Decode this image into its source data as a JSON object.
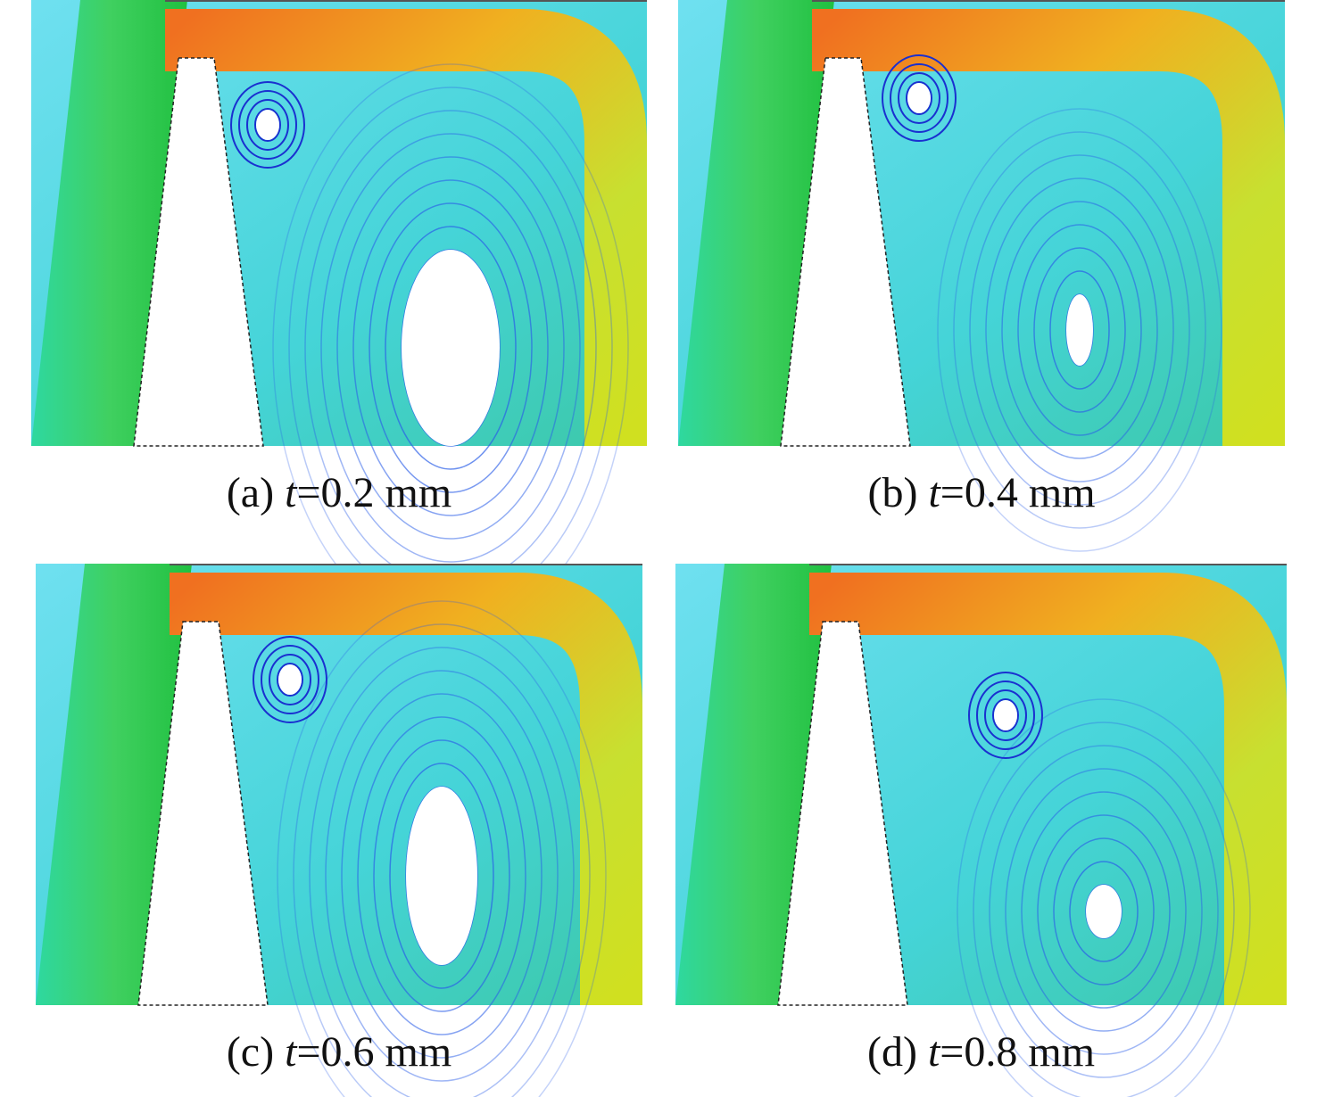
{
  "panels": [
    {
      "label": "(a)",
      "variable": "t",
      "value": "=0.2 mm"
    },
    {
      "label": "(b)",
      "variable": "t",
      "value": "=0.4 mm"
    },
    {
      "label": "(c)",
      "variable": "t",
      "value": "=0.6 mm"
    },
    {
      "label": "(d)",
      "variable": "t",
      "value": "=0.8 mm"
    }
  ]
}
